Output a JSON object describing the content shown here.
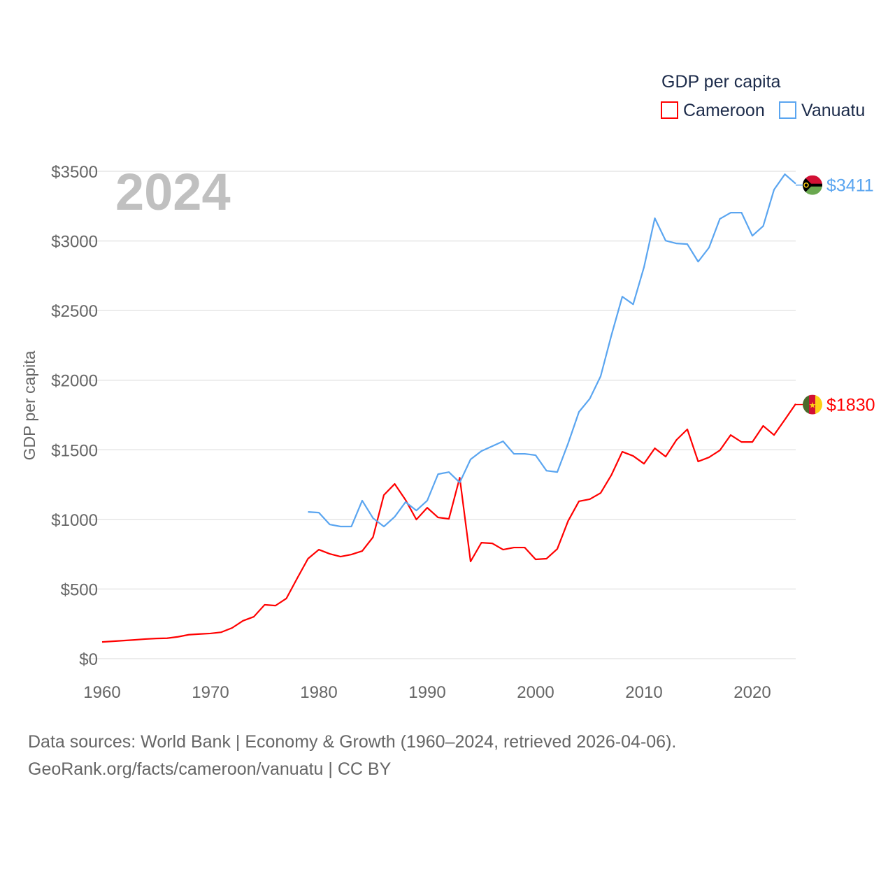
{
  "chart_data": {
    "type": "line",
    "year_label": "2024",
    "ylabel": "GDP per capita",
    "xlabel": "",
    "legend_title": "GDP per capita",
    "legend_placement": "top-right",
    "xlim": [
      1960,
      2024
    ],
    "ylim": [
      0,
      3500
    ],
    "x_ticks": [
      "1960",
      "1970",
      "1980",
      "1990",
      "2000",
      "2010",
      "2020"
    ],
    "x_tick_values": [
      1960,
      1970,
      1980,
      1990,
      2000,
      2010,
      2020
    ],
    "y_ticks": [
      "$0",
      "$500",
      "$1000",
      "$1500",
      "$2000",
      "$2500",
      "$3000",
      "$3500"
    ],
    "y_tick_values": [
      0,
      500,
      1000,
      1500,
      2000,
      2500,
      3000,
      3500
    ],
    "grid": true,
    "series": [
      {
        "name": "Cameroon",
        "color": "#ff0000",
        "end_label": "$1830",
        "start_year": 1960,
        "values": [
          120,
          125,
          130,
          135,
          141,
          145,
          147,
          157,
          172,
          177,
          181,
          190,
          221,
          272,
          301,
          387,
          381,
          432,
          577,
          718,
          783,
          753,
          733,
          748,
          773,
          873,
          1175,
          1255,
          1140,
          999,
          1084,
          1014,
          1004,
          1300,
          698,
          833,
          828,
          783,
          798,
          798,
          713,
          718,
          788,
          989,
          1130,
          1145,
          1190,
          1320,
          1486,
          1456,
          1400,
          1511,
          1451,
          1571,
          1647,
          1416,
          1446,
          1496,
          1606,
          1556,
          1556,
          1672,
          1606,
          1717,
          1830
        ]
      },
      {
        "name": "Vanuatu",
        "color": "#5aa5f0",
        "end_label": "$3411",
        "start_year": 1979,
        "values": [
          1054,
          1049,
          964,
          949,
          949,
          1135,
          1009,
          949,
          1019,
          1125,
          1064,
          1135,
          1325,
          1340,
          1265,
          1431,
          1491,
          1526,
          1561,
          1471,
          1471,
          1461,
          1350,
          1340,
          1546,
          1772,
          1867,
          2028,
          2324,
          2600,
          2545,
          2811,
          3163,
          3002,
          2982,
          2977,
          2851,
          2952,
          3158,
          3203,
          3203,
          3037,
          3107,
          3368,
          3479,
          3411
        ]
      }
    ]
  },
  "footer": {
    "line1": "Data sources: World Bank | Economy & Growth (1960–2024, retrieved 2026-04-06).",
    "line2": "GeoRank.org/facts/cameroon/vanuatu | CC BY"
  }
}
